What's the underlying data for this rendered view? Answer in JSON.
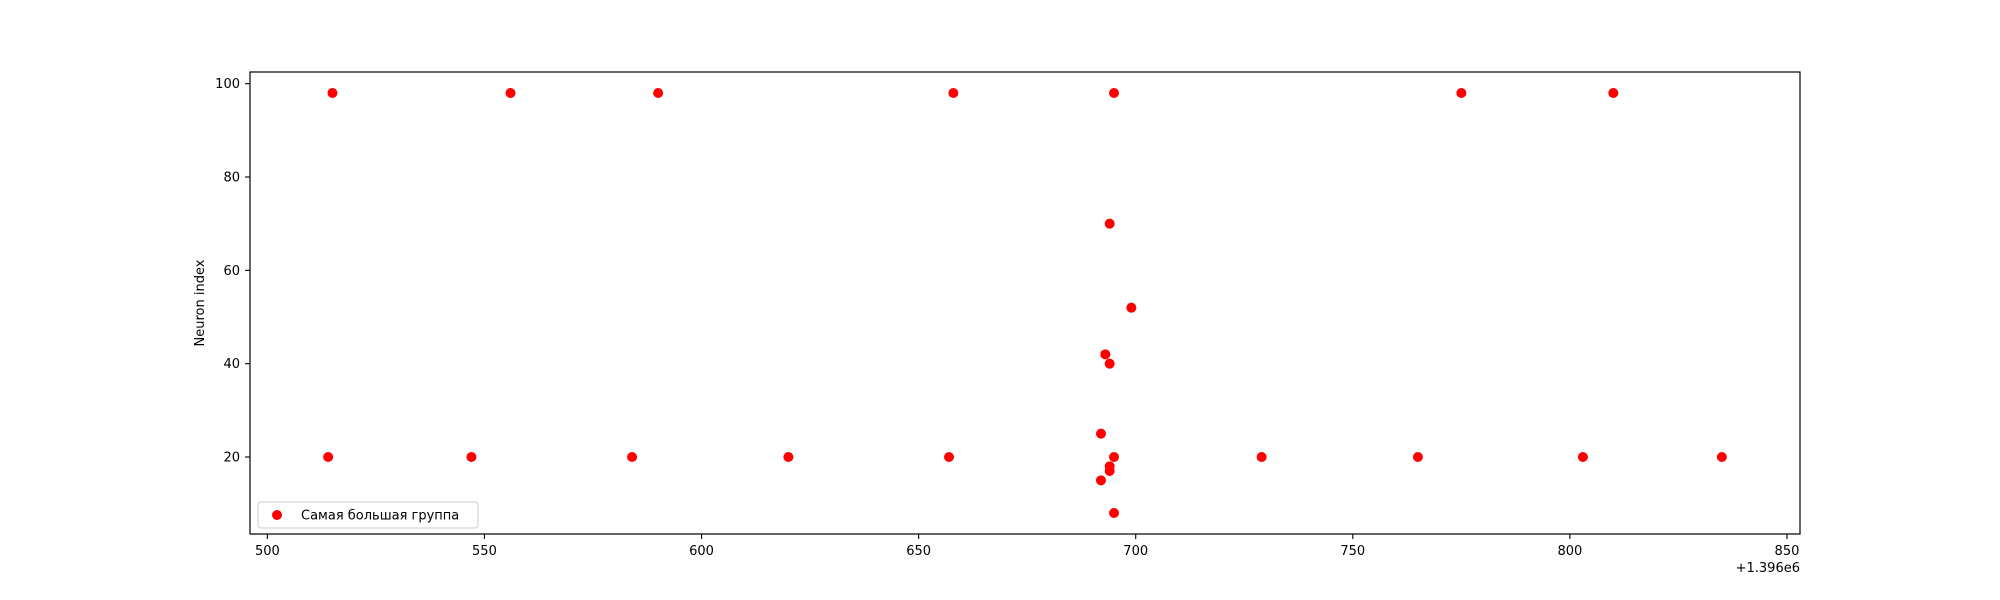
{
  "chart_data": {
    "type": "scatter",
    "title": "",
    "xlabel": "",
    "ylabel": "Neuron index",
    "x_offset_label": "+1.396e6",
    "xlim": [
      1396496,
      1396853
    ],
    "ylim": [
      3.5,
      102.5
    ],
    "x_ticks": [
      500,
      550,
      600,
      650,
      700,
      750,
      800,
      850
    ],
    "y_ticks": [
      20,
      40,
      60,
      80,
      100
    ],
    "grid": false,
    "legend_position": "lower-left",
    "series": [
      {
        "name": "Самая большая группа",
        "color": "#ff0000",
        "marker": "circle",
        "points": [
          {
            "x": 1396515,
            "y": 98
          },
          {
            "x": 1396556,
            "y": 98
          },
          {
            "x": 1396590,
            "y": 98
          },
          {
            "x": 1396658,
            "y": 98
          },
          {
            "x": 1396695,
            "y": 98
          },
          {
            "x": 1396775,
            "y": 98
          },
          {
            "x": 1396810,
            "y": 98
          },
          {
            "x": 1396694,
            "y": 70
          },
          {
            "x": 1396699,
            "y": 52
          },
          {
            "x": 1396693,
            "y": 42
          },
          {
            "x": 1396694,
            "y": 40
          },
          {
            "x": 1396692,
            "y": 25
          },
          {
            "x": 1396514,
            "y": 20
          },
          {
            "x": 1396547,
            "y": 20
          },
          {
            "x": 1396584,
            "y": 20
          },
          {
            "x": 1396620,
            "y": 20
          },
          {
            "x": 1396657,
            "y": 20
          },
          {
            "x": 1396695,
            "y": 20
          },
          {
            "x": 1396729,
            "y": 20
          },
          {
            "x": 1396765,
            "y": 20
          },
          {
            "x": 1396803,
            "y": 20
          },
          {
            "x": 1396835,
            "y": 20
          },
          {
            "x": 1396694,
            "y": 18
          },
          {
            "x": 1396694,
            "y": 17
          },
          {
            "x": 1396692,
            "y": 15
          },
          {
            "x": 1396695,
            "y": 8
          }
        ]
      }
    ]
  }
}
